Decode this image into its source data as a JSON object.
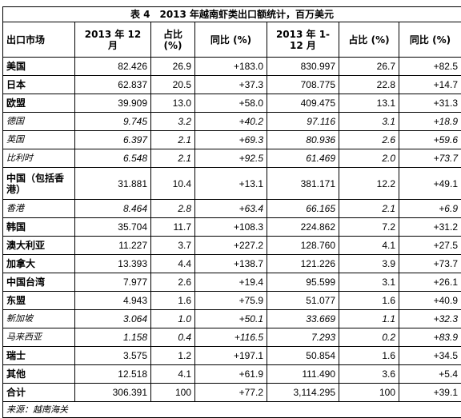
{
  "table": {
    "title": "表 4　2013 年越南虾类出口额统计，百万美元",
    "header": [
      "出口市场",
      "2013 年 12 月",
      "占比(%)",
      "同比 (%)",
      "2013 年 1-12 月",
      "占比 (%)",
      "同比 (%)"
    ],
    "rows": [
      [
        "美国",
        "82.426",
        "26.9",
        "+183.0",
        "830.997",
        "26.7",
        "+82.5"
      ],
      [
        "日本",
        "62.837",
        "20.5",
        "+37.3",
        "708.775",
        "22.8",
        "+14.7"
      ],
      [
        "欧盟",
        "39.909",
        "13.0",
        "+58.0",
        "409.475",
        "13.1",
        "+31.3"
      ],
      [
        "德国",
        "9.745",
        "3.2",
        "+40.2",
        "97.116",
        "3.1",
        "+18.9"
      ],
      [
        "英国",
        "6.397",
        "2.1",
        "+69.3",
        "80.936",
        "2.6",
        "+59.6"
      ],
      [
        "比利时",
        "6.548",
        "2.1",
        "+92.5",
        "61.469",
        "2.0",
        "+73.7"
      ],
      [
        "中国（包括香港）",
        "31.881",
        "10.4",
        "+13.1",
        "381.171",
        "12.2",
        "+49.1"
      ],
      [
        "香港",
        "8.464",
        "2.8",
        "+63.4",
        "66.165",
        "2.1",
        "+6.9"
      ],
      [
        "韩国",
        "35.704",
        "11.7",
        "+108.3",
        "224.862",
        "7.2",
        "+31.2"
      ],
      [
        "澳大利亚",
        "11.227",
        "3.7",
        "+227.2",
        "128.760",
        "4.1",
        "+27.5"
      ],
      [
        "加拿大",
        "13.393",
        "4.4",
        "+138.7",
        "121.226",
        "3.9",
        "+73.7"
      ],
      [
        "中国台湾",
        "7.977",
        "2.6",
        "+19.4",
        "95.599",
        "3.1",
        "+26.1"
      ],
      [
        "东盟",
        "4.943",
        "1.6",
        "+75.9",
        "51.077",
        "1.6",
        "+40.9"
      ],
      [
        "新加坡",
        "3.064",
        "1.0",
        "+50.1",
        "33.669",
        "1.1",
        "+32.3"
      ],
      [
        "马来西亚",
        "1.158",
        "0.4",
        "+116.5",
        "7.293",
        "0.2",
        "+83.9"
      ],
      [
        "瑞士",
        "3.575",
        "1.2",
        "+197.1",
        "50.854",
        "1.6",
        "+34.5"
      ],
      [
        "其他",
        "12.518",
        "4.1",
        "+61.9",
        "111.490",
        "3.6",
        "+5.4"
      ],
      [
        "合计",
        "306.391",
        "100",
        "+77.2",
        "3,114.295",
        "100",
        "+39.1"
      ]
    ],
    "source": "来源：越南海关"
  }
}
